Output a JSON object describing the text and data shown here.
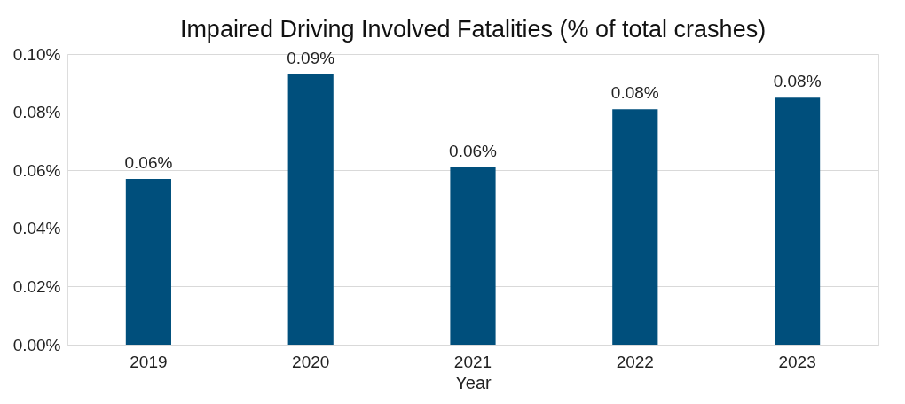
{
  "chart_data": {
    "type": "bar",
    "title": "Impaired Driving Involved Fatalities (% of total crashes)",
    "xlabel": "Year",
    "categories": [
      "2019",
      "2020",
      "2021",
      "2022",
      "2023"
    ],
    "values": [
      0.057,
      0.093,
      0.061,
      0.081,
      0.085
    ],
    "value_labels": [
      "0.06%",
      "0.09%",
      "0.06%",
      "0.08%",
      "0.08%"
    ],
    "color": "#004f7c",
    "ylim": [
      0,
      0.1
    ],
    "yticks": [
      {
        "value": 0,
        "label": "0.00%"
      },
      {
        "value": 0.02,
        "label": "0.02%"
      },
      {
        "value": 0.04,
        "label": "0.04%"
      },
      {
        "value": 0.06,
        "label": "0.06%"
      },
      {
        "value": 0.08,
        "label": "0.08%"
      },
      {
        "value": 0.1,
        "label": "0.10%"
      }
    ],
    "grid": "y"
  }
}
